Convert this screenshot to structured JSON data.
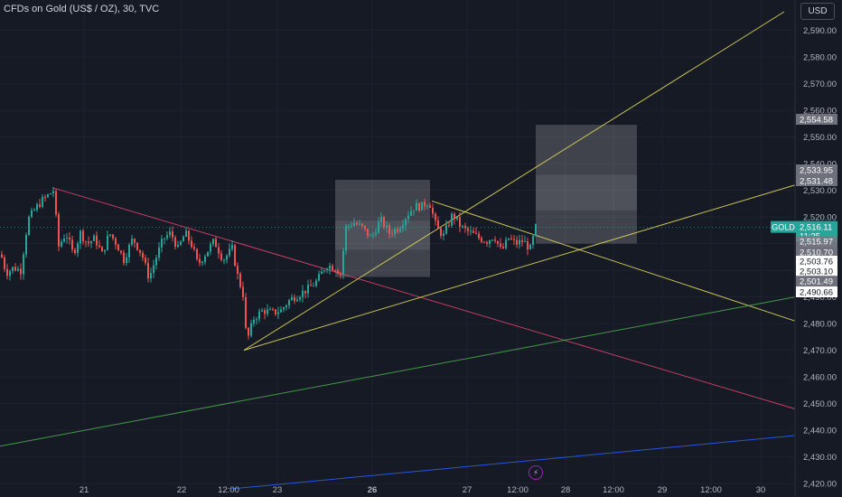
{
  "header": {
    "title": "CFDs on Gold (US$ / OZ), 30, TVC",
    "currency_button": "USD"
  },
  "colors": {
    "background": "#161a25",
    "grid": "#1f2330",
    "axis_text": "#b2b5be",
    "candle_up": "#26a69a",
    "candle_down": "#ef5350",
    "trend_yellow": "#e6e15a",
    "trend_pink": "#e0456e",
    "trend_green": "#4caf50",
    "trend_blue": "#2962ff",
    "zone_fill": "#ffffff"
  },
  "chart_data": {
    "type": "candlestick",
    "symbol": "GOLD",
    "ylim": [
      2418,
      2597
    ],
    "y_ticks": [
      "2,420.00",
      "2,430.00",
      "2,440.00",
      "2,450.00",
      "2,460.00",
      "2,470.00",
      "2,480.00",
      "2,490.00",
      "2,500.00",
      "2,510.00",
      "2,520.00",
      "2,530.00",
      "2,540.00",
      "2,550.00",
      "2,560.00",
      "2,570.00",
      "2,580.00",
      "2,590.00"
    ],
    "x_labels": [
      {
        "label": "21",
        "bold": false
      },
      {
        "label": "22",
        "bold": false
      },
      {
        "label": "12:00",
        "bold": false
      },
      {
        "label": "23",
        "bold": false
      },
      {
        "label": "26",
        "bold": true
      },
      {
        "label": "27",
        "bold": false
      },
      {
        "label": "12:00",
        "bold": false
      },
      {
        "label": "28",
        "bold": false
      },
      {
        "label": "12:00",
        "bold": false
      },
      {
        "label": "29",
        "bold": false
      },
      {
        "label": "12:00",
        "bold": false
      },
      {
        "label": "30",
        "bold": false
      }
    ],
    "price_path": [
      [
        0,
        2506
      ],
      [
        6,
        2499
      ],
      [
        14,
        2501
      ],
      [
        22,
        2500
      ],
      [
        30,
        2519
      ],
      [
        38,
        2523
      ],
      [
        45,
        2526
      ],
      [
        52,
        2528
      ],
      [
        58,
        2530
      ],
      [
        64,
        2509
      ],
      [
        72,
        2514
      ],
      [
        80,
        2506
      ],
      [
        88,
        2514
      ],
      [
        96,
        2510
      ],
      [
        104,
        2512
      ],
      [
        112,
        2506
      ],
      [
        120,
        2514
      ],
      [
        128,
        2510
      ],
      [
        136,
        2504
      ],
      [
        146,
        2512
      ],
      [
        156,
        2506
      ],
      [
        164,
        2497
      ],
      [
        172,
        2505
      ],
      [
        180,
        2512
      ],
      [
        188,
        2514
      ],
      [
        196,
        2508
      ],
      [
        204,
        2514
      ],
      [
        212,
        2509
      ],
      [
        218,
        2502
      ],
      [
        226,
        2506
      ],
      [
        236,
        2511
      ],
      [
        246,
        2504
      ],
      [
        256,
        2508
      ],
      [
        262,
        2498
      ],
      [
        268,
        2491
      ],
      [
        272,
        2473
      ],
      [
        280,
        2482
      ],
      [
        290,
        2485
      ],
      [
        300,
        2484
      ],
      [
        310,
        2485
      ],
      [
        320,
        2489
      ],
      [
        330,
        2491
      ],
      [
        340,
        2493
      ],
      [
        350,
        2496
      ],
      [
        360,
        2502
      ],
      [
        370,
        2501
      ],
      [
        376,
        2499
      ],
      [
        382,
        2516
      ],
      [
        390,
        2518
      ],
      [
        400,
        2516
      ],
      [
        410,
        2512
      ],
      [
        420,
        2519
      ],
      [
        430,
        2514
      ],
      [
        440,
        2516
      ],
      [
        450,
        2521
      ],
      [
        458,
        2524
      ],
      [
        466,
        2524
      ],
      [
        474,
        2526
      ],
      [
        482,
        2516
      ],
      [
        490,
        2513
      ],
      [
        500,
        2521
      ],
      [
        510,
        2516
      ],
      [
        520,
        2514
      ],
      [
        530,
        2512
      ],
      [
        538,
        2511
      ],
      [
        546,
        2513
      ],
      [
        554,
        2507
      ],
      [
        562,
        2512
      ],
      [
        570,
        2510
      ],
      [
        578,
        2511
      ],
      [
        586,
        2508
      ],
      [
        592,
        2516
      ]
    ],
    "last_price": "2,516.11",
    "countdown": "11:35",
    "price_tags": [
      {
        "value": "2,554.58",
        "style": "gray"
      },
      {
        "value": "2,533.95",
        "style": "gray"
      },
      {
        "value": "2,531.48",
        "style": "gray"
      },
      {
        "value": "2,515.97",
        "style": "gray"
      },
      {
        "value": "2,510.70",
        "style": "gray"
      },
      {
        "value": "2,503.76",
        "style": "white"
      },
      {
        "value": "2,503.10",
        "style": "white"
      },
      {
        "value": "2,501.49",
        "style": "gray"
      },
      {
        "value": "2,490.66",
        "style": "white"
      }
    ],
    "trendlines": [
      {
        "color": "pink",
        "from": [
          58,
          2531
        ],
        "to": [
          880,
          2448
        ]
      },
      {
        "color": "yellow",
        "from": [
          270,
          2470
        ],
        "to": [
          868,
          2597
        ]
      },
      {
        "color": "yellow",
        "from": [
          270,
          2470
        ],
        "to": [
          880,
          2532
        ]
      },
      {
        "color": "yellow",
        "from": [
          478,
          2526
        ],
        "to": [
          880,
          2481
        ]
      },
      {
        "color": "green",
        "from": [
          0,
          2434
        ],
        "to": [
          880,
          2490
        ]
      },
      {
        "color": "blue",
        "from": [
          256,
          2418
        ],
        "to": [
          880,
          2438
        ]
      }
    ],
    "zones": [
      {
        "x0": 371,
        "x1": 476,
        "y_top": 2533.95,
        "y_bottom": 2497.5
      },
      {
        "x0": 593,
        "x1": 705,
        "y_top": 2554.58,
        "y_bottom": 2510.0
      }
    ]
  }
}
